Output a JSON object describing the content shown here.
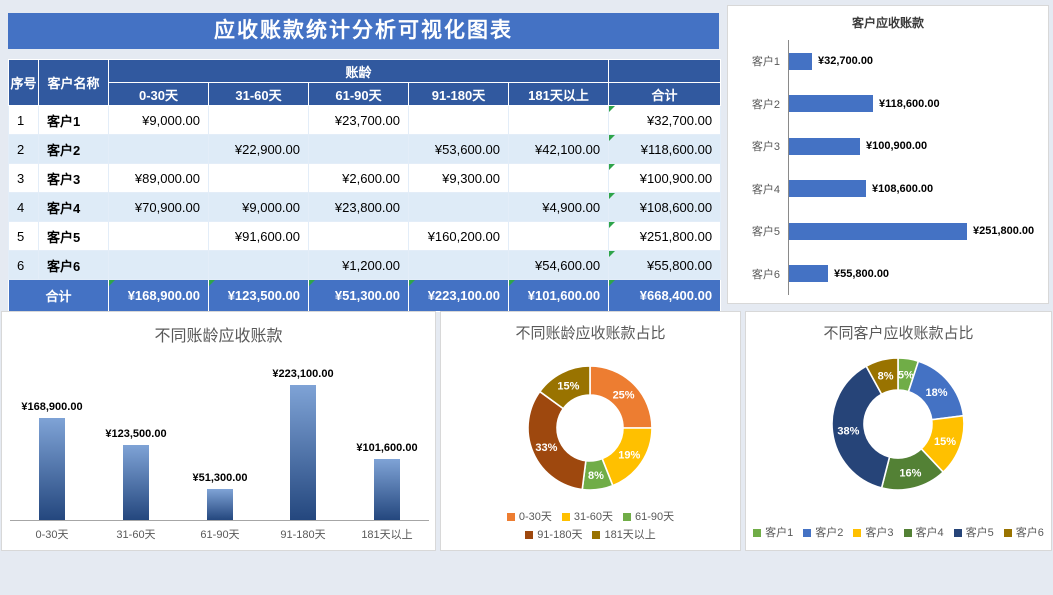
{
  "page": {
    "title": "应收账款统计分析可视化图表"
  },
  "table": {
    "headers": {
      "no": "序号",
      "customer": "客户名称",
      "aging": "账龄",
      "total": "合计",
      "aging_cols": [
        "0-30天",
        "31-60天",
        "61-90天",
        "91-180天",
        "181天以上"
      ]
    },
    "rows": [
      {
        "no": "1",
        "customer": "客户1",
        "values": [
          "¥9,000.00",
          "",
          "¥23,700.00",
          "",
          ""
        ],
        "total": "¥32,700.00"
      },
      {
        "no": "2",
        "customer": "客户2",
        "values": [
          "",
          "¥22,900.00",
          "",
          "¥53,600.00",
          "¥42,100.00"
        ],
        "total": "¥118,600.00"
      },
      {
        "no": "3",
        "customer": "客户3",
        "values": [
          "¥89,000.00",
          "",
          "¥2,600.00",
          "¥9,300.00",
          ""
        ],
        "total": "¥100,900.00"
      },
      {
        "no": "4",
        "customer": "客户4",
        "values": [
          "¥70,900.00",
          "¥9,000.00",
          "¥23,800.00",
          "",
          "¥4,900.00"
        ],
        "total": "¥108,600.00"
      },
      {
        "no": "5",
        "customer": "客户5",
        "values": [
          "",
          "¥91,600.00",
          "",
          "¥160,200.00",
          ""
        ],
        "total": "¥251,800.00"
      },
      {
        "no": "6",
        "customer": "客户6",
        "values": [
          "",
          "",
          "¥1,200.00",
          "",
          "¥54,600.00"
        ],
        "total": "¥55,800.00"
      }
    ],
    "total_row": {
      "label": "合计",
      "values": [
        "¥168,900.00",
        "¥123,500.00",
        "¥51,300.00",
        "¥223,100.00",
        "¥101,600.00"
      ],
      "total": "¥668,400.00"
    }
  },
  "chart_data": [
    {
      "id": "customer_bar",
      "type": "bar",
      "orientation": "horizontal",
      "title": "客户应收账款",
      "categories": [
        "客户1",
        "客户2",
        "客户3",
        "客户4",
        "客户5",
        "客户6"
      ],
      "values": [
        32700,
        118600,
        100900,
        108600,
        251800,
        55800
      ],
      "value_labels": [
        "¥32,700.00",
        "¥118,600.00",
        "¥100,900.00",
        "¥108,600.00",
        "¥251,800.00",
        "¥55,800.00"
      ],
      "bar_color": "#4472C4",
      "xlim": [
        0,
        260000
      ],
      "grid": false,
      "legend_position": "none"
    },
    {
      "id": "aging_bar",
      "type": "bar",
      "orientation": "vertical",
      "title": "不同账龄应收账款",
      "categories": [
        "0-30天",
        "31-60天",
        "61-90天",
        "91-180天",
        "181天以上"
      ],
      "values": [
        168900,
        123500,
        51300,
        223100,
        101600
      ],
      "value_labels": [
        "¥168,900.00",
        "¥123,500.00",
        "¥51,300.00",
        "¥223,100.00",
        "¥101,600.00"
      ],
      "bar_gradient": [
        "#7FA3D6",
        "#24477E"
      ],
      "ylim": [
        0,
        230000
      ],
      "grid": false,
      "legend_position": "none"
    },
    {
      "id": "aging_donut",
      "type": "pie",
      "subtype": "donut",
      "title": "不同账龄应收账款占比",
      "categories": [
        "0-30天",
        "31-60天",
        "61-90天",
        "91-180天",
        "181天以上"
      ],
      "values": [
        25,
        19,
        8,
        33,
        15
      ],
      "slice_labels": [
        "25%",
        "19%",
        "8%",
        "33%",
        "15%"
      ],
      "colors": [
        "#ED7D31",
        "#FFC000",
        "#70AD47",
        "#9E480E",
        "#997300"
      ],
      "legend_position": "bottom"
    },
    {
      "id": "customer_donut",
      "type": "pie",
      "subtype": "donut",
      "title": "不同客户应收账款占比",
      "categories": [
        "客户1",
        "客户2",
        "客户3",
        "客户4",
        "客户5",
        "客户6"
      ],
      "values": [
        5,
        18,
        15,
        16,
        38,
        8
      ],
      "slice_labels": [
        "5%",
        "18%",
        "15%",
        "16%",
        "38%",
        "8%"
      ],
      "colors": [
        "#70AD47",
        "#4472C4",
        "#FFC000",
        "#538135",
        "#264478",
        "#997300"
      ],
      "legend_position": "bottom"
    }
  ],
  "colors": {
    "title_bar": "#4472C4",
    "table_header": "#31599F",
    "row_alt": "#DEEBF7",
    "total_row": "#4472C4",
    "error_flag_green": "#2EA44A",
    "bar_blue": "#4472C4",
    "background": "#E5EAF2"
  }
}
